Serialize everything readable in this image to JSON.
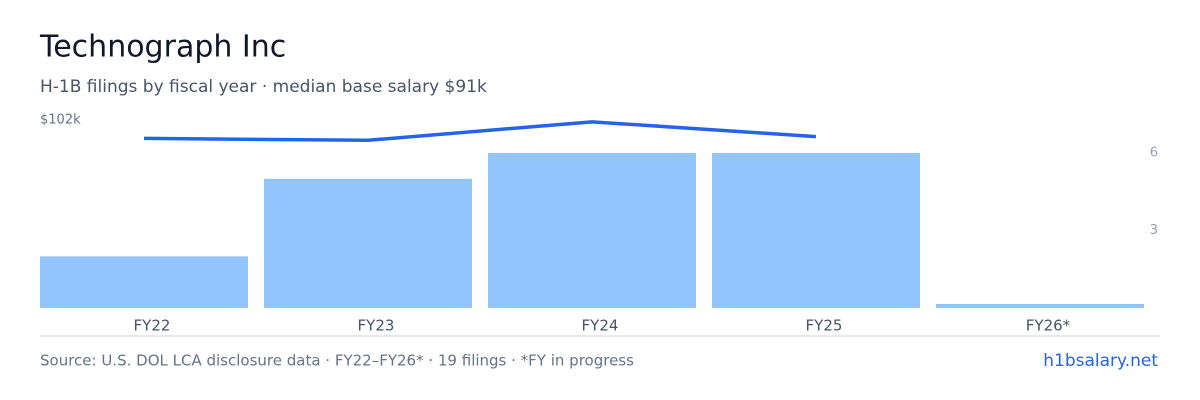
{
  "chart_data": {
    "type": "bar-line",
    "title": "Technograph Inc",
    "subtitle": "H-1B filings by fiscal year · median base salary $91k",
    "categories": [
      "FY22",
      "FY23",
      "FY24",
      "FY25",
      "FY26*"
    ],
    "series": [
      {
        "type": "bar",
        "axis": "y2",
        "color": "#93c5fd",
        "values": [
          2,
          5,
          6,
          6,
          0
        ]
      },
      {
        "type": "line",
        "color": "#2563eb",
        "values": [
          92000,
          91000,
          101000,
          93000,
          null
        ]
      }
    ],
    "ylim": [
      0,
      102000
    ],
    "yticks": [
      {
        "value": 102000,
        "label": "$102k"
      }
    ],
    "y2lim": [
      0,
      6
    ],
    "y2ticks": [
      3,
      6
    ],
    "source": "Source: U.S. DOL LCA disclosure data · FY22–FY26* · 19 filings · *FY in progress",
    "link": "h1bsalary.net"
  }
}
